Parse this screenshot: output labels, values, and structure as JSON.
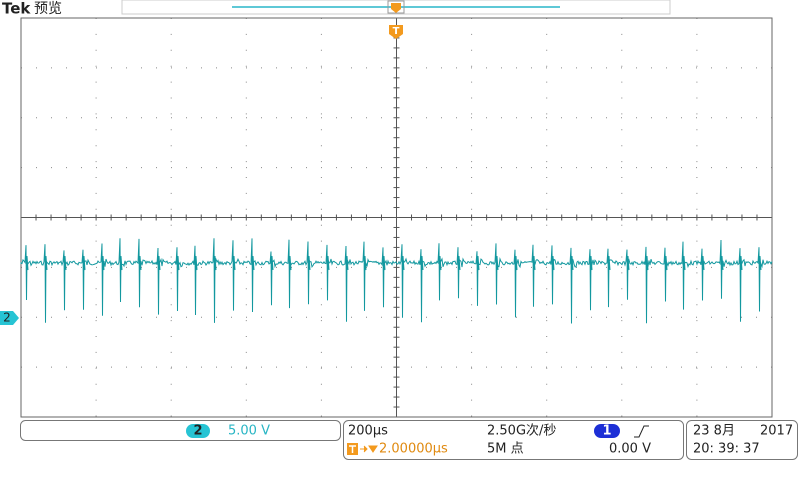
{
  "header": {
    "brand": "Tek",
    "mode": "预览"
  },
  "trigger_marker": "T",
  "channel_marker": "2",
  "channel": {
    "number": "2",
    "scale": "5.00 V"
  },
  "timebase": {
    "scale": "200µs",
    "sample_rate": "2.50G次/秒",
    "position": "2.00000µs",
    "record_length": "5M 点"
  },
  "trigger": {
    "source": "1",
    "level": "0.00 V"
  },
  "datetime": {
    "date": "23 8月",
    "year": "2017",
    "time": "20: 39: 37"
  }
}
